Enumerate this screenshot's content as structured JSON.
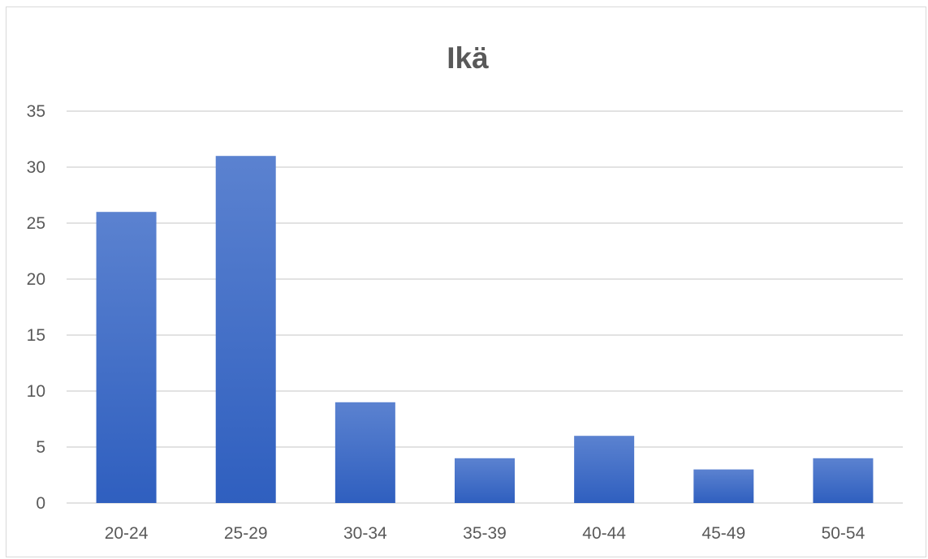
{
  "chart_data": {
    "type": "bar",
    "title": "Ikä",
    "categories": [
      "20-24",
      "25-29",
      "30-34",
      "35-39",
      "40-44",
      "45-49",
      "50-54"
    ],
    "values": [
      26,
      31,
      9,
      4,
      6,
      3,
      4
    ],
    "ylim": [
      0,
      35
    ],
    "yticks": [
      0,
      5,
      10,
      15,
      20,
      25,
      30,
      35
    ],
    "grid": true,
    "legend": "none",
    "bar_color_top": "#5b82d0",
    "bar_color_bottom": "#2f5fbf",
    "gridline_color": "#d9d9d9",
    "text_color": "#595959"
  }
}
